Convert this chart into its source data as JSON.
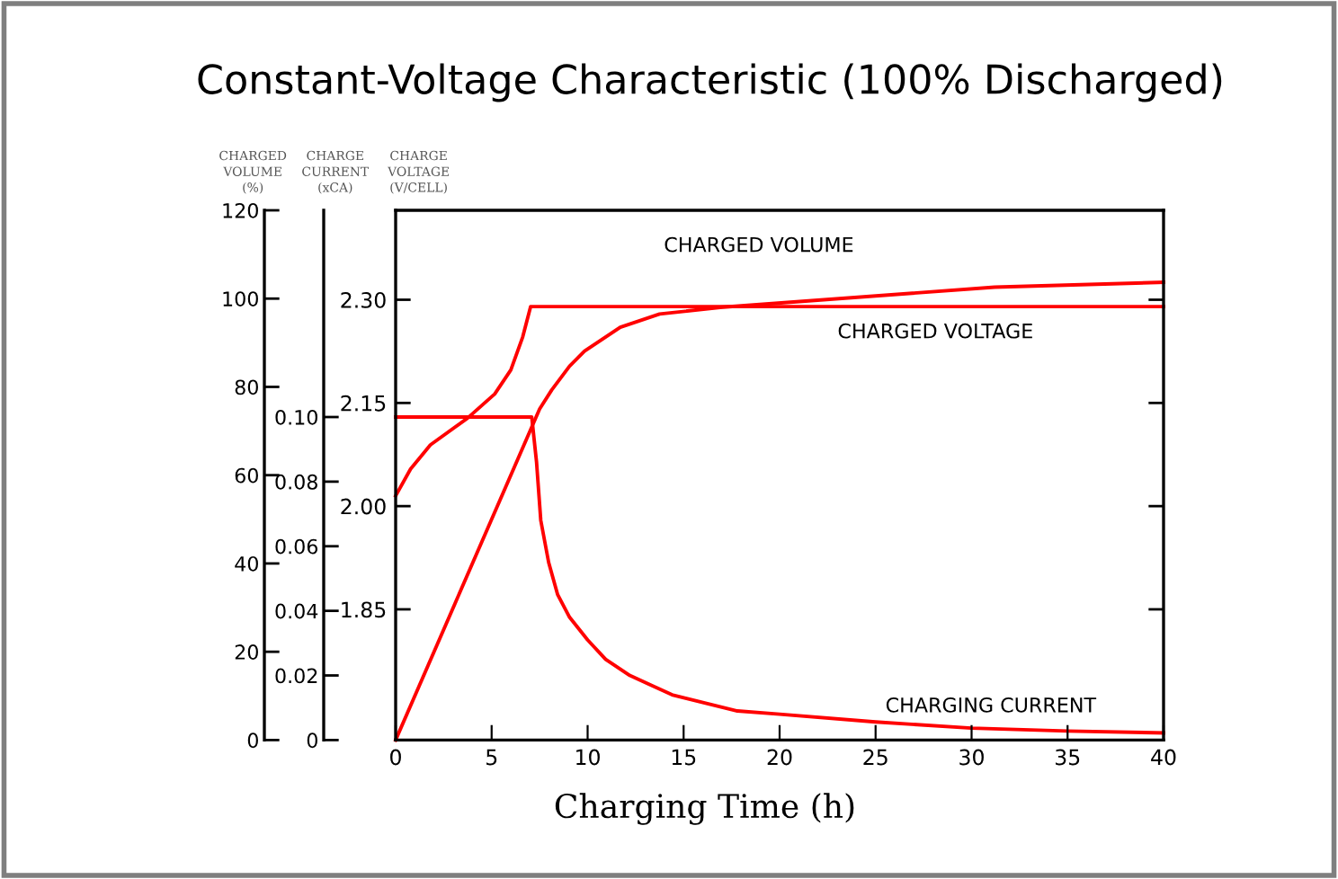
{
  "chart_data": {
    "type": "line",
    "title": "Constant-Voltage Characteristic (100% Discharged)",
    "xlabel": "Charging Time (h)",
    "ylabel": "CHARGED\nVOLUME\n(%)",
    "y2label": "CHARGE\nCURRENT\n(xCA)",
    "y3label": "CHARGE\nVOLTAGE\n(V/CELL)",
    "xlim": [
      0,
      40
    ],
    "xticks": [
      0,
      5,
      10,
      15,
      20,
      25,
      30,
      35,
      40
    ],
    "ylim": [
      0,
      120
    ],
    "yticks": [
      0,
      20,
      40,
      60,
      80,
      100,
      120
    ],
    "y2lim": [
      0,
      0.164
    ],
    "y2ticks": [
      0,
      0.02,
      0.04,
      0.06,
      {
        "value": 0.1,
        "label": "0.10"
      },
      0.08
    ],
    "y3lim": [
      1.66,
      2.43
    ],
    "y3ticks": [
      {
        "value": 1.85,
        "label": "1.85"
      },
      {
        "value": 2.0,
        "label": "2.00"
      },
      {
        "value": 2.15,
        "label": "2.15"
      },
      {
        "value": 2.3,
        "label": "2.30"
      }
    ],
    "grid": false,
    "legend": false,
    "marker": "none",
    "line_style": "solid",
    "series": [
      {
        "name": "CHARGED VOLUME",
        "color": "#ff0000",
        "axis": "y",
        "x": [
          0,
          7.5,
          8.13,
          9.06,
          9.84,
          11.7,
          13.75,
          16.9,
          31.2,
          40
        ],
        "values": [
          0,
          75,
          79.3,
          84.7,
          88.1,
          93.5,
          96.5,
          98.0,
          102.6,
          103.7
        ]
      },
      {
        "name": "CHARGED VOLTAGE",
        "color": "#ff0000",
        "axis": "y3",
        "x": [
          0,
          0.78,
          1.81,
          3.75,
          5.16,
          6.0,
          6.62,
          7.03,
          40
        ],
        "values": [
          2.015,
          2.054,
          2.089,
          2.128,
          2.163,
          2.198,
          2.246,
          2.29,
          2.29
        ]
      },
      {
        "name": "CHARGING CURRENT",
        "color": "#ff0000",
        "axis": "y2",
        "x": [
          0,
          7.09,
          7.34,
          7.56,
          7.97,
          8.44,
          9.06,
          10.0,
          10.94,
          12.2,
          14.4,
          17.8,
          20,
          25,
          30,
          35,
          40
        ],
        "values": [
          0.1,
          0.1,
          0.086,
          0.068,
          0.055,
          0.045,
          0.038,
          0.031,
          0.025,
          0.02,
          0.014,
          0.009,
          0.008,
          0.0056,
          0.0037,
          0.0028,
          0.0022
        ]
      }
    ]
  }
}
